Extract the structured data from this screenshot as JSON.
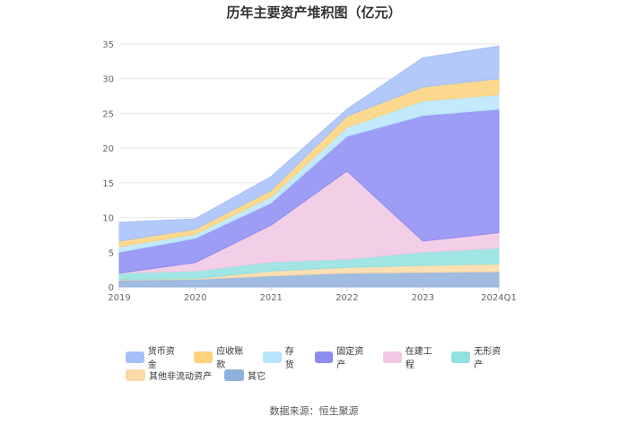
{
  "chart_data": {
    "type": "area",
    "stacked": true,
    "title": "历年主要资产堆积图（亿元）",
    "source": "数据来源：恒生聚源",
    "x": [
      "2019",
      "2020",
      "2021",
      "2022",
      "2023",
      "2024Q1"
    ],
    "ylim": [
      0,
      35
    ],
    "yticks": [
      0,
      5,
      10,
      15,
      20,
      25,
      30,
      35
    ],
    "grid": true,
    "legend_position": "bottom",
    "series": [
      {
        "name": "其它",
        "color": "#8fb0dc",
        "values": [
          1.0,
          1.1,
          1.6,
          2.0,
          2.1,
          2.2
        ]
      },
      {
        "name": "其他非流动资产",
        "color": "#fbd9a6",
        "values": [
          0.1,
          0.1,
          0.7,
          0.8,
          1.0,
          1.1
        ]
      },
      {
        "name": "无形资产",
        "color": "#91e1e0",
        "values": [
          0.9,
          1.1,
          1.3,
          1.2,
          1.9,
          2.3
        ]
      },
      {
        "name": "在建工程",
        "color": "#f1c7e3",
        "values": [
          0.0,
          1.2,
          5.3,
          12.7,
          1.6,
          2.2
        ]
      },
      {
        "name": "固定资产",
        "color": "#8c8cf3",
        "values": [
          3.0,
          3.5,
          3.2,
          5.0,
          18.1,
          17.8
        ]
      },
      {
        "name": "存货",
        "color": "#b7e5fb",
        "values": [
          0.8,
          0.6,
          0.9,
          1.3,
          2.1,
          2.1
        ]
      },
      {
        "name": "应收账款",
        "color": "#fcd27a",
        "values": [
          0.8,
          0.7,
          0.9,
          1.6,
          2.0,
          2.3
        ]
      },
      {
        "name": "货币资金",
        "color": "#a6bff8",
        "values": [
          2.7,
          1.5,
          2.0,
          1.0,
          4.2,
          4.7
        ]
      }
    ]
  }
}
